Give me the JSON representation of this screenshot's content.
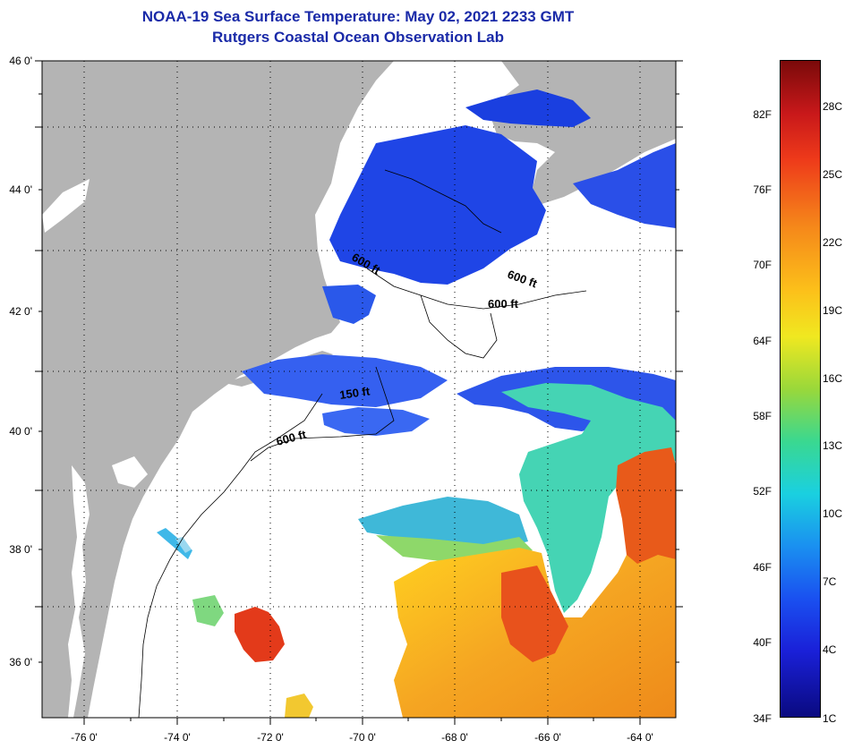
{
  "header": {
    "title": "NOAA-19 Sea Surface Temperature:  May 02, 2021 2233 GMT",
    "subtitle": "Rutgers Coastal Ocean Observation Lab"
  },
  "map": {
    "lon_labels": [
      "-76 0'",
      "-74 0'",
      "-72 0'",
      "-70 0'",
      "-68 0'",
      "-66 0'",
      "-64 0'"
    ],
    "lat_labels": [
      "46 0'",
      "44 0'",
      "42 0'",
      "40 0'",
      "38 0'",
      "36 0'"
    ],
    "contour_labels": [
      "600 ft",
      "600 ft",
      "600 ft",
      "150 ft",
      "600 ft"
    ],
    "colors": {
      "land": "#b4b4b4",
      "cloud": "#ffffff",
      "cold": "#1a3fe0",
      "warm": "#f0a020",
      "hot": "#e0301a",
      "cyan": "#40d8c8"
    }
  },
  "colorbar": {
    "fahrenheit": [
      "82F",
      "76F",
      "70F",
      "64F",
      "58F",
      "52F",
      "46F",
      "40F",
      "34F"
    ],
    "celsius": [
      "28C",
      "25C",
      "22C",
      "19C",
      "16C",
      "13C",
      "10C",
      "7C",
      "4C",
      "1C"
    ]
  }
}
